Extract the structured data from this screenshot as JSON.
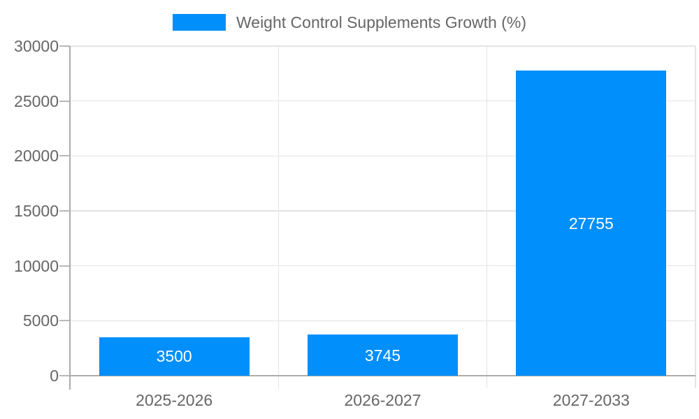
{
  "legend": {
    "label": "Weight Control Supplements Growth (%)",
    "position": "top-center"
  },
  "chart_data": {
    "type": "bar",
    "title": "Weight Control Supplements Growth (%)",
    "categories": [
      "2025-2026",
      "2026-2027",
      "2027-2033"
    ],
    "values": [
      3500,
      3745,
      27755
    ],
    "data_labels": [
      "3500",
      "3745",
      "27755"
    ],
    "series": [
      {
        "name": "Weight Control Supplements Growth (%)",
        "values": [
          3500,
          3745,
          27755
        ]
      }
    ],
    "xlabel": "",
    "ylabel": "",
    "ylim": [
      0,
      30000
    ],
    "yticks": [
      0,
      5000,
      10000,
      15000,
      20000,
      25000,
      30000
    ],
    "grid": "horizontal gridlines plus vertical category-boundary lines",
    "legend_position": "top-center",
    "colors": {
      "bar": "#008FFB",
      "bar_label": "#ffffff",
      "axis_line": "#ababab",
      "tick_line": "#b8b8b8",
      "grid_line": "#e4e4e4",
      "label_text": "#666666",
      "background": "#ffffff"
    }
  }
}
